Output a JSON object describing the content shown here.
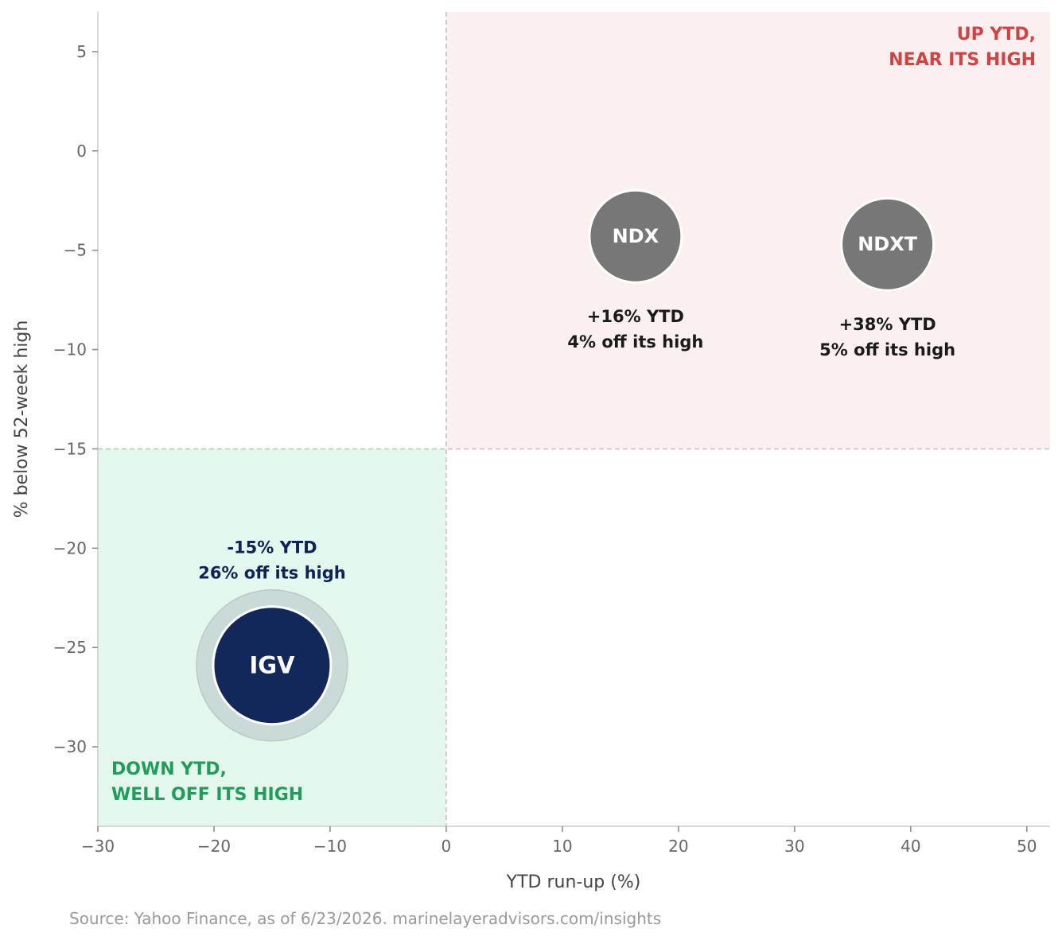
{
  "chart_data": {
    "type": "scatter",
    "xlabel": "YTD run-up  (%)",
    "ylabel": "% below 52-week high",
    "xlim": [
      -30,
      52
    ],
    "ylim": [
      -34,
      7
    ],
    "xticks": [
      -30,
      -20,
      -10,
      0,
      10,
      20,
      30,
      40,
      50
    ],
    "yticks": [
      5,
      0,
      -5,
      -10,
      -15,
      -20,
      -25,
      -30
    ],
    "xtick_labels": [
      "−30",
      "−20",
      "−10",
      "0",
      "10",
      "20",
      "30",
      "40",
      "50"
    ],
    "ytick_labels": [
      "5",
      "0",
      "−5",
      "−10",
      "−15",
      "−20",
      "−25",
      "−30"
    ],
    "grid": false,
    "thresholds": {
      "x": 0,
      "y": -15
    },
    "quadrants": [
      {
        "lines": [
          "UP YTD,",
          "NEAR ITS HIGH"
        ],
        "color": "#d64040",
        "fill": "#faf0f0",
        "x_range": [
          0,
          52
        ],
        "y_range": [
          -15,
          7
        ]
      },
      {
        "lines": [
          "DOWN YTD,",
          "WELL OFF ITS HIGH"
        ],
        "color": "#1e9e58",
        "fill": "#e4f7ec",
        "x_range": [
          -30,
          0
        ],
        "y_range": [
          -34,
          -15
        ]
      }
    ],
    "points": [
      {
        "label": "NDX",
        "x": 16.3,
        "y": -4.3,
        "color": "#777777",
        "annotation": [
          "+16% YTD",
          "4% off its high"
        ],
        "annotation_color": "#1a1a1a",
        "highlight": false
      },
      {
        "label": "NDXT",
        "x": 38,
        "y": -4.7,
        "color": "#777777",
        "annotation": [
          "+38% YTD",
          "5% off its high"
        ],
        "annotation_color": "#1a1a1a",
        "highlight": false
      },
      {
        "label": "IGV",
        "x": -15,
        "y": -25.9,
        "color": "#13285a",
        "halo_color": "#c9dad8",
        "annotation": [
          "-15% YTD",
          "26% off its high"
        ],
        "annotation_color": "#0f2357",
        "highlight": true
      }
    ]
  },
  "footer": {
    "source": "Source: Yahoo Finance, as of 6/23/2026.  marinelayeradvisors.com/insights"
  }
}
